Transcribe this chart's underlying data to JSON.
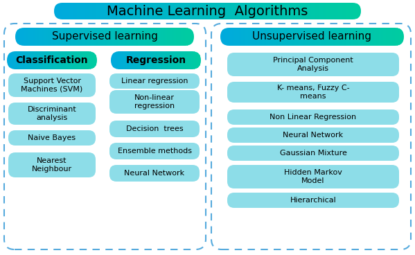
{
  "title": "Machine Learning  Algorithms",
  "supervised_label": "Supervised learning",
  "unsupervised_label": "Unsupervised learning",
  "classification_label": "Classification",
  "regression_label": "Regression",
  "classification_items": [
    "Support Vector\nMachines (SVM)",
    "Discriminant\nanalysis",
    "Naive Bayes",
    "Nearest\nNeighbour"
  ],
  "regression_items": [
    "Linear regression",
    "Non-linear\nregression",
    "Decision  trees",
    "Ensemble methods",
    "Neural Network"
  ],
  "unsupervised_items": [
    "Principal Component\nAnalysis",
    "K- means, Fuzzy C-\nmeans",
    "Non Linear Regression",
    "Neural Network",
    "Gaussian Mixture",
    "Hidden Markov\nModel",
    "Hierarchical"
  ],
  "header_color_left": "#00AADD",
  "header_color_right": "#00CCA0",
  "item_color": "#8DDDE8",
  "dash_color": "#55AADD",
  "bg_color": "#FFFFFF",
  "title_fontsize": 14,
  "header_fontsize": 11,
  "subheader_fontsize": 10,
  "item_fontsize": 8
}
